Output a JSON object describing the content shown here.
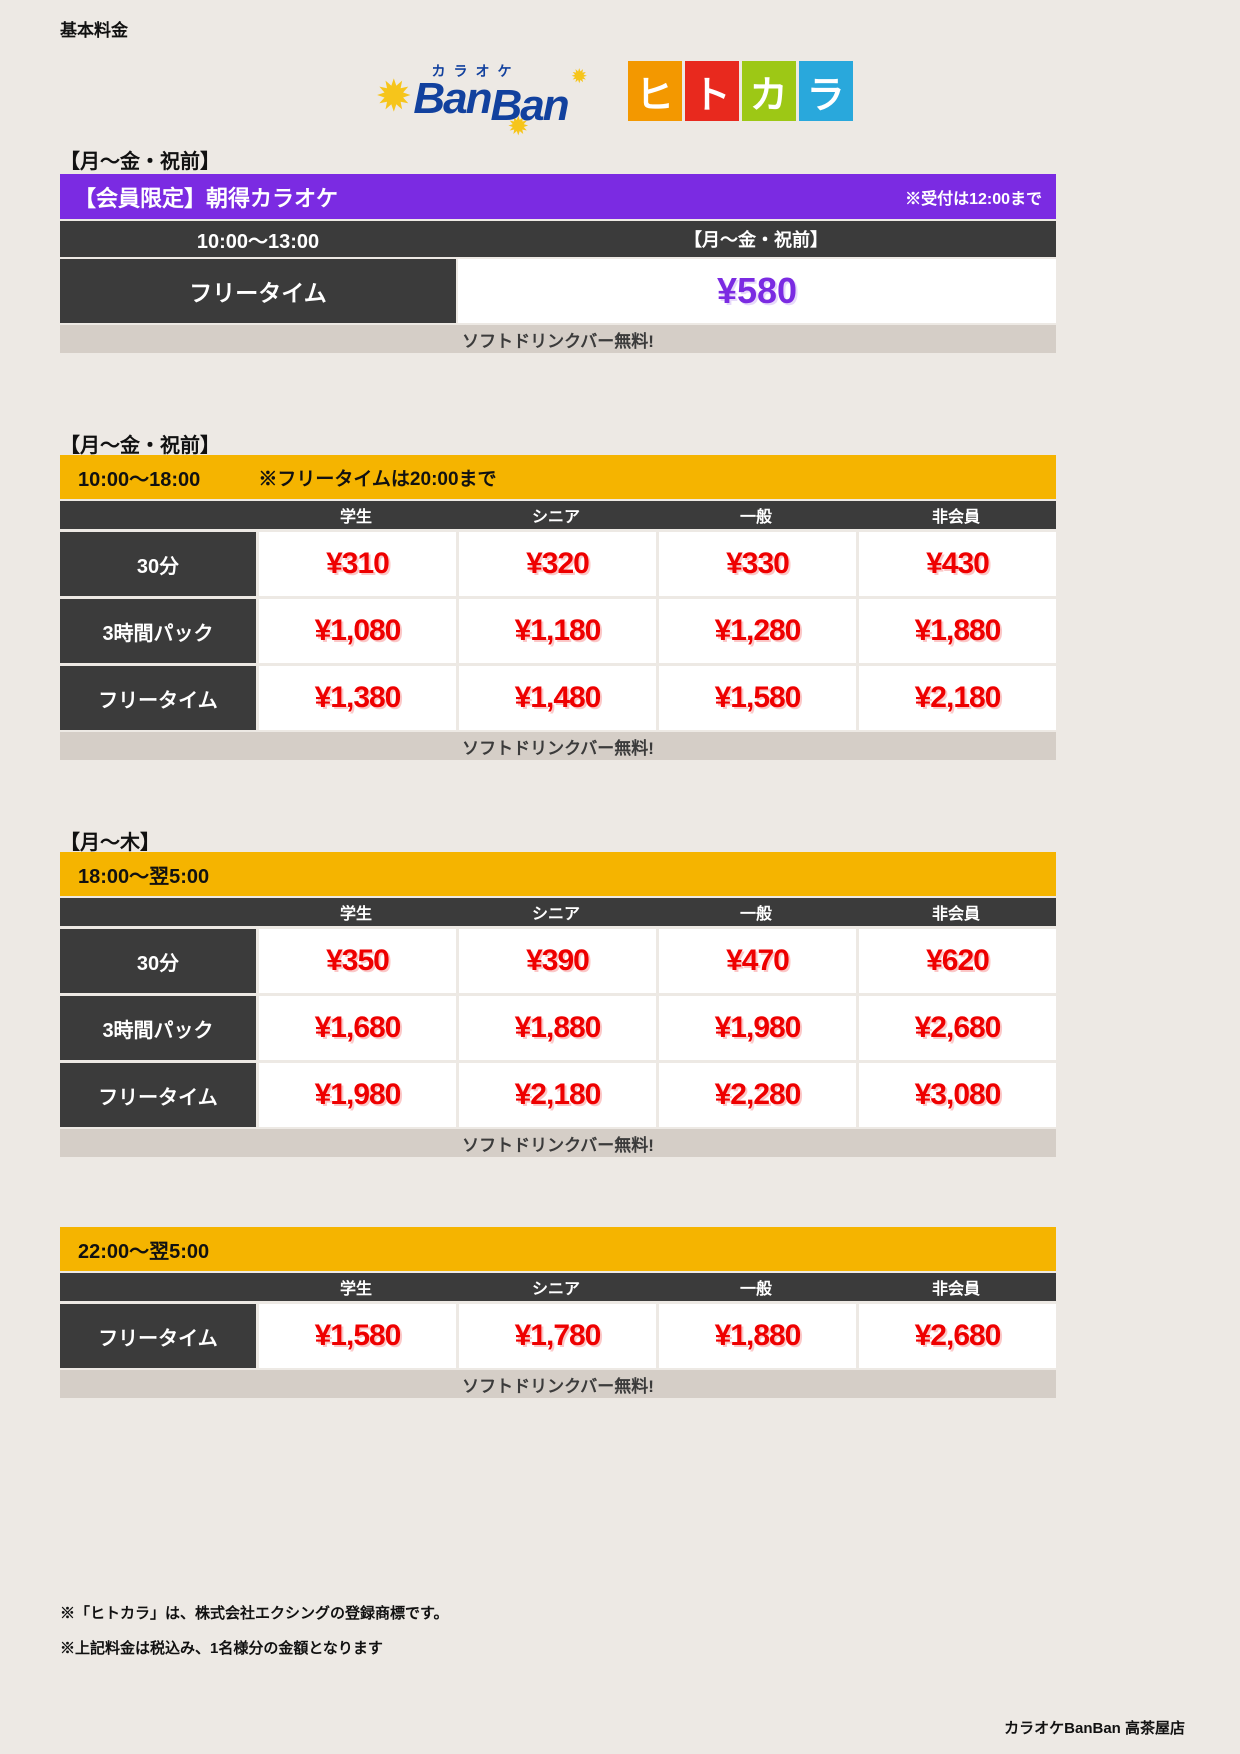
{
  "page": {
    "title": "基本料金",
    "store": "カラオケBanBan 高茶屋店"
  },
  "logo": {
    "karaoke_label": "カラオケ",
    "banban_parts": [
      "Ban",
      "Ban"
    ],
    "star_glyph": "✹",
    "hitokara": [
      {
        "char": "ヒ",
        "color": "#F39800"
      },
      {
        "char": "ト",
        "color": "#E8291E"
      },
      {
        "char": "カ",
        "color": "#9DC815"
      },
      {
        "char": "ラ",
        "color": "#29A8DC"
      }
    ]
  },
  "morning": {
    "day_label": "【月〜金・祝前】",
    "title": "【会員限定】朝得カラオケ",
    "note": "※受付は12:00まで",
    "time": "10:00〜13:00",
    "day": "【月〜金・祝前】",
    "plan": "フリータイム",
    "price": "¥580",
    "footer": "ソフトドリンクバー無料!"
  },
  "tables": [
    {
      "day_label": "【月〜金・祝前】",
      "time": "10:00〜18:00",
      "time_note": "※フリータイムは20:00まで",
      "columns": [
        "学生",
        "シニア",
        "一般",
        "非会員"
      ],
      "rows": [
        {
          "label": "30分",
          "prices": [
            "¥310",
            "¥320",
            "¥330",
            "¥430"
          ]
        },
        {
          "label": "3時間パック",
          "prices": [
            "¥1,080",
            "¥1,180",
            "¥1,280",
            "¥1,880"
          ]
        },
        {
          "label": "フリータイム",
          "prices": [
            "¥1,380",
            "¥1,480",
            "¥1,580",
            "¥2,180"
          ]
        }
      ],
      "footer": "ソフトドリンクバー無料!"
    },
    {
      "day_label": "【月〜木】",
      "time": "18:00〜翌5:00",
      "time_note": "",
      "columns": [
        "学生",
        "シニア",
        "一般",
        "非会員"
      ],
      "rows": [
        {
          "label": "30分",
          "prices": [
            "¥350",
            "¥390",
            "¥470",
            "¥620"
          ]
        },
        {
          "label": "3時間パック",
          "prices": [
            "¥1,680",
            "¥1,880",
            "¥1,980",
            "¥2,680"
          ]
        },
        {
          "label": "フリータイム",
          "prices": [
            "¥1,980",
            "¥2,180",
            "¥2,280",
            "¥3,080"
          ]
        }
      ],
      "footer": "ソフトドリンクバー無料!"
    },
    {
      "day_label": "",
      "time": "22:00〜翌5:00",
      "time_note": "",
      "columns": [
        "学生",
        "シニア",
        "一般",
        "非会員"
      ],
      "rows": [
        {
          "label": "フリータイム",
          "prices": [
            "¥1,580",
            "¥1,780",
            "¥1,880",
            "¥2,680"
          ]
        }
      ],
      "footer": "ソフトドリンクバー無料!"
    }
  ],
  "notes": [
    "※「ヒトカラ」は、株式会社エクシングの登録商標です。",
    "※上記料金は税込み、1名様分の金額となります"
  ],
  "colors": {
    "accent_purple": "#7B2BE2",
    "accent_yellow": "#F5B400",
    "price_red": "#EE0000",
    "dark_cell": "#3B3B3B",
    "banner_gray": "#D5CEC7",
    "background": "#EDE9E4",
    "banban_blue": "#12419E"
  }
}
